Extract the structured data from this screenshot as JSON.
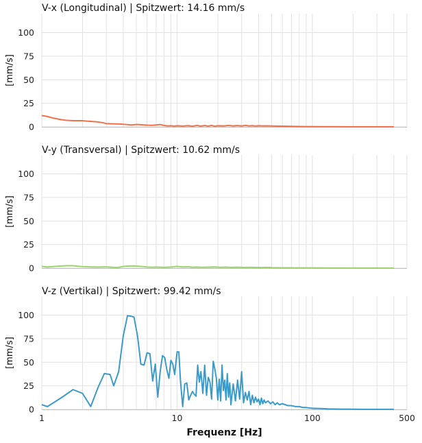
{
  "chart_data": {
    "type": "line",
    "x_scale": "log",
    "xlim": [
      1,
      500
    ],
    "x_ticks": [
      1,
      10,
      100,
      500
    ],
    "x_tick_labels": [
      "1",
      "10",
      "100",
      "500"
    ],
    "xlabel": "Frequenz [Hz]",
    "grid": true,
    "panels": [
      {
        "title": "V-x (Longitudinal) | Spitzwert: 14.16 mm/s",
        "ylabel": "[mm/s]",
        "ylim": [
          0,
          120
        ],
        "y_ticks": [
          0,
          25,
          50,
          75,
          100
        ],
        "color": "#f07047",
        "series": [
          {
            "x": [
              1,
              1.1,
              1.2,
              1.35,
              1.5,
              1.7,
              2,
              2.2,
              2.5,
              2.8,
              3,
              3.4,
              3.8,
              4.2,
              4.6,
              5,
              5.5,
              6,
              6.5,
              7,
              7.5,
              8,
              8.5,
              9,
              9.5,
              10,
              11,
              12,
              13,
              14,
              15,
              16,
              17,
              18,
              19,
              20,
              22,
              24,
              26,
              28,
              30,
              32,
              34,
              36,
              38,
              40,
              43,
              46,
              50,
              55,
              60,
              65,
              70,
              80,
              90,
              100,
              120,
              150,
              200,
              250,
              300,
              350,
              400
            ],
            "y": [
              12,
              11,
              9.5,
              8,
              7,
              6.5,
              6.5,
              6,
              5.5,
              4.5,
              3.5,
              3.2,
              3,
              2.5,
              2,
              2.5,
              2.2,
              1.8,
              1.6,
              2,
              2.5,
              1.5,
              1,
              1.2,
              0.8,
              1.2,
              0.8,
              1.3,
              0.7,
              1.5,
              0.8,
              1.4,
              0.8,
              1.5,
              0.7,
              1.2,
              1,
              1.5,
              1,
              1.4,
              0.9,
              1.6,
              1,
              1.3,
              0.9,
              1.2,
              1,
              1.1,
              0.9,
              0.8,
              0.7,
              0.6,
              0.5,
              0.4,
              0.3,
              0.25,
              0.2,
              0.15,
              0.1,
              0.1,
              0.1,
              0.1,
              0.1
            ]
          }
        ]
      },
      {
        "title": "V-y (Transversal) | Spitzwert: 10.62 mm/s",
        "ylabel": "[mm/s]",
        "ylim": [
          0,
          120
        ],
        "y_ticks": [
          0,
          25,
          50,
          75,
          100
        ],
        "color": "#9bd46b",
        "series": [
          {
            "x": [
              1,
              1.1,
              1.3,
              1.5,
              1.7,
              2,
              2.3,
              2.6,
              3,
              3.3,
              3.6,
              4,
              4.4,
              4.8,
              5.2,
              5.6,
              6,
              6.5,
              7,
              8,
              9,
              10,
              11,
              12,
              13,
              14,
              15,
              17,
              19,
              21,
              23,
              25,
              28,
              31,
              35,
              40,
              45,
              50,
              60,
              70,
              80,
              100,
              130,
              170,
              220,
              300,
              400
            ],
            "y": [
              1.8,
              1.2,
              2,
              2.5,
              2.5,
              1.6,
              1.3,
              1.2,
              1.4,
              1,
              0.6,
              1.8,
              2.3,
              2.4,
              2,
              1.6,
              1.2,
              1,
              1.2,
              0.8,
              1.2,
              1.8,
              1.3,
              1.5,
              1,
              1.2,
              0.9,
              1.1,
              1.3,
              0.9,
              1.1,
              0.8,
              1,
              0.7,
              0.9,
              0.6,
              0.8,
              0.5,
              0.4,
              0.4,
              0.3,
              0.25,
              0.2,
              0.15,
              0.1,
              0.1,
              0.1
            ]
          }
        ]
      },
      {
        "title": "V-z (Vertikal) | Spitzwert: 99.42 mm/s",
        "ylabel": "[mm/s]",
        "ylim": [
          0,
          120
        ],
        "y_ticks": [
          0,
          25,
          50,
          75,
          100
        ],
        "color": "#3a9ac9",
        "series": [
          {
            "x": [
              1,
              1.1,
              1.25,
              1.45,
              1.7,
              2,
              2.3,
              2.6,
              2.9,
              3.2,
              3.4,
              3.7,
              4.0,
              4.3,
              4.5,
              4.8,
              5.1,
              5.4,
              5.7,
              6,
              6.3,
              6.6,
              6.9,
              7.2,
              7.5,
              7.8,
              8.1,
              8.4,
              8.7,
              9,
              9.3,
              9.6,
              10,
              10.3,
              10.6,
              11,
              11.4,
              11.8,
              12.2,
              12.6,
              13,
              13.4,
              13.8,
              14.2,
              14.6,
              15,
              15.5,
              16,
              16.5,
              17,
              17.5,
              18,
              18.5,
              19,
              19.5,
              20,
              20.5,
              21,
              21.5,
              22,
              22.5,
              23,
              23.5,
              24,
              24.5,
              25,
              26,
              27,
              28,
              29,
              30,
              31,
              32,
              33,
              34,
              35,
              36,
              37,
              38,
              39,
              40,
              41,
              42,
              43,
              44,
              45,
              47,
              49,
              51,
              53,
              55,
              57,
              60,
              63,
              66,
              70,
              75,
              80,
              85,
              90,
              95,
              100,
              110,
              120,
              130,
              150,
              170,
              200,
              250,
              300,
              350,
              400
            ],
            "y": [
              5,
              3,
              8,
              14,
              21,
              17,
              3,
              23,
              38,
              37,
              25,
              40,
              78,
              99.4,
              99,
              98,
              78,
              48,
              47,
              60,
              59,
              30,
              48,
              13,
              40,
              57,
              55,
              42,
              33,
              52,
              48,
              37,
              61,
              61,
              30,
              3,
              27,
              28,
              10,
              15,
              19,
              16,
              14,
              47,
              29,
              40,
              17,
              47,
              15,
              34,
              29,
              11,
              51,
              43,
              33,
              10,
              32,
              9,
              47,
              20,
              31,
              10,
              38,
              13,
              28,
              5,
              27,
              9,
              31,
              11,
              40,
              7,
              18,
              10,
              19,
              5,
              15,
              7,
              13,
              8,
              11,
              5,
              12,
              6,
              10,
              7,
              9,
              6,
              8,
              5,
              7,
              5,
              6,
              5,
              4,
              4,
              3,
              3,
              2,
              2,
              1.5,
              1.2,
              1,
              0.8,
              0.5,
              0.4,
              0.3,
              0.2,
              0.1,
              0.1,
              0.1,
              0.1
            ]
          }
        ]
      }
    ]
  }
}
